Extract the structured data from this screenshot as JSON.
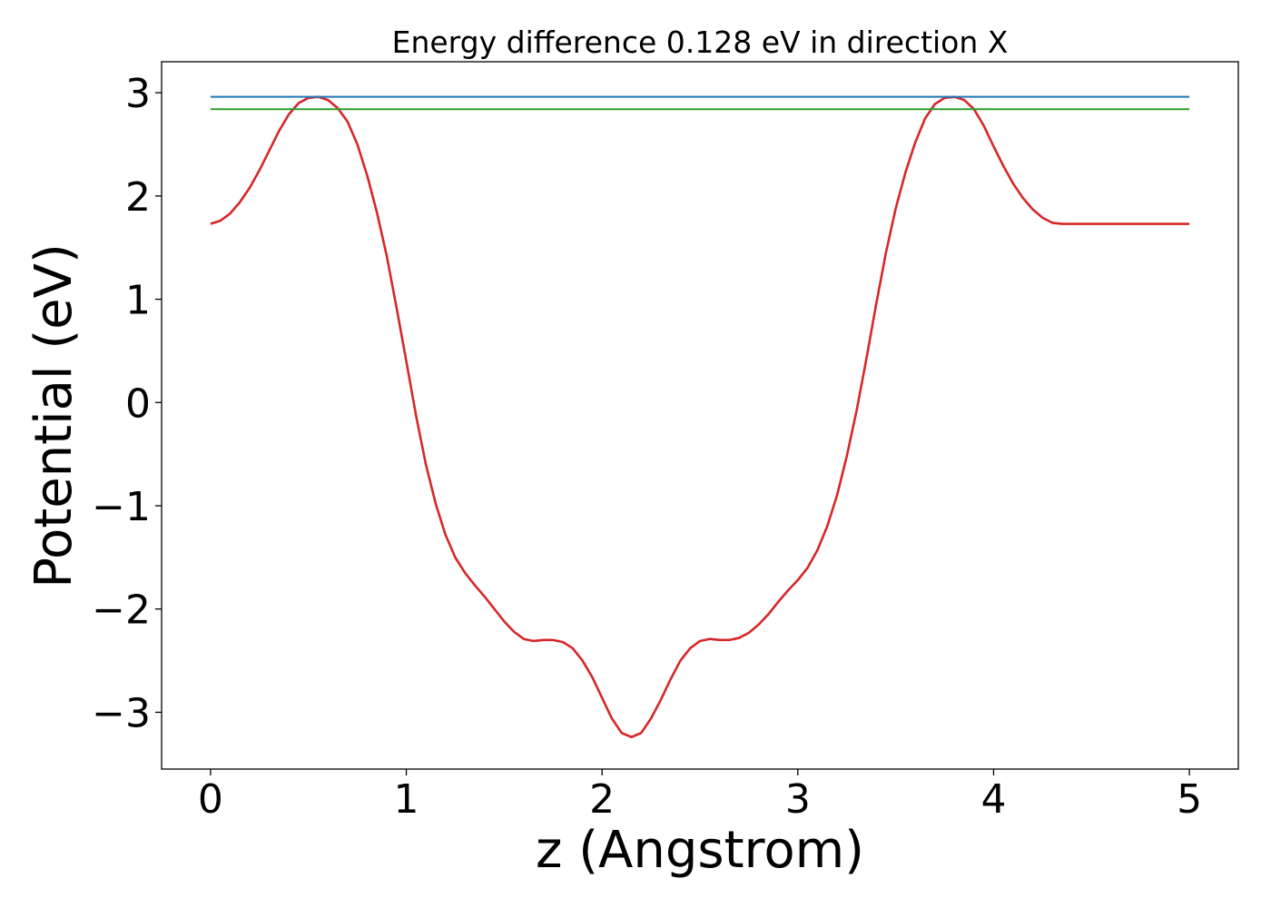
{
  "chart_data": {
    "type": "line",
    "title": "Energy difference 0.128 eV in direction X",
    "xlabel": "z (Angstrom)",
    "ylabel": "Potential (eV)",
    "xlim": [
      -0.25,
      5.25
    ],
    "ylim": [
      -3.55,
      3.3
    ],
    "x_ticks": [
      0,
      1,
      2,
      3,
      4,
      5
    ],
    "x_tick_labels": [
      "0",
      "1",
      "2",
      "3",
      "4",
      "5"
    ],
    "y_ticks": [
      -3,
      -2,
      -1,
      0,
      1,
      2,
      3
    ],
    "y_tick_labels": [
      "−3",
      "−2",
      "−1",
      "0",
      "1",
      "2",
      "3"
    ],
    "grid": false,
    "legend": "none",
    "series": [
      {
        "color": "#d62728",
        "x": [
          0,
          0.05,
          0.1,
          0.15,
          0.2,
          0.25,
          0.3,
          0.35,
          0.4,
          0.45,
          0.5,
          0.55,
          0.6,
          0.65,
          0.7,
          0.75,
          0.8,
          0.85,
          0.9,
          0.95,
          1.0,
          1.05,
          1.1,
          1.15,
          1.2,
          1.25,
          1.3,
          1.35,
          1.4,
          1.45,
          1.5,
          1.55,
          1.6,
          1.65,
          1.7,
          1.75,
          1.8,
          1.85,
          1.9,
          1.95,
          2.0,
          2.05,
          2.1,
          2.15,
          2.2,
          2.25,
          2.3,
          2.35,
          2.4,
          2.45,
          2.5,
          2.55,
          2.6,
          2.65,
          2.7,
          2.75,
          2.8,
          2.85,
          2.9,
          2.95,
          3.0,
          3.05,
          3.1,
          3.15,
          3.2,
          3.25,
          3.3,
          3.35,
          3.4,
          3.45,
          3.5,
          3.55,
          3.6,
          3.65,
          3.7,
          3.75,
          3.8,
          3.85,
          3.9,
          3.95,
          4.0,
          4.05,
          4.1,
          4.15,
          4.2,
          4.25,
          4.3,
          4.35,
          4.4,
          4.45,
          4.5,
          4.55,
          4.6,
          4.65,
          4.7,
          4.75,
          4.8,
          4.85,
          4.9,
          4.95,
          5.0
        ],
        "values": [
          1.73,
          1.76,
          1.83,
          1.94,
          2.08,
          2.25,
          2.44,
          2.63,
          2.79,
          2.9,
          2.95,
          2.96,
          2.93,
          2.85,
          2.72,
          2.5,
          2.2,
          1.84,
          1.42,
          0.92,
          0.4,
          -0.13,
          -0.6,
          -0.98,
          -1.28,
          -1.5,
          -1.65,
          -1.77,
          -1.88,
          -2.0,
          -2.12,
          -2.22,
          -2.29,
          -2.31,
          -2.3,
          -2.3,
          -2.32,
          -2.38,
          -2.5,
          -2.66,
          -2.86,
          -3.06,
          -3.2,
          -3.24,
          -3.2,
          -3.06,
          -2.88,
          -2.68,
          -2.5,
          -2.38,
          -2.31,
          -2.29,
          -2.3,
          -2.3,
          -2.28,
          -2.23,
          -2.15,
          -2.05,
          -1.93,
          -1.82,
          -1.72,
          -1.6,
          -1.43,
          -1.2,
          -0.9,
          -0.52,
          -0.08,
          0.42,
          0.95,
          1.45,
          1.88,
          2.23,
          2.52,
          2.75,
          2.89,
          2.95,
          2.96,
          2.93,
          2.84,
          2.68,
          2.48,
          2.29,
          2.12,
          1.98,
          1.87,
          1.79,
          1.74,
          1.73,
          1.73,
          1.73,
          1.73,
          1.73,
          1.73,
          1.73,
          1.73,
          1.73,
          1.73,
          1.73,
          1.73,
          1.73,
          1.73
        ]
      },
      {
        "color": "#1f77b4",
        "x": [
          0,
          5
        ],
        "values": [
          2.96,
          2.96
        ]
      },
      {
        "color": "#2ca02c",
        "x": [
          0,
          5
        ],
        "values": [
          2.84,
          2.84
        ]
      }
    ]
  }
}
